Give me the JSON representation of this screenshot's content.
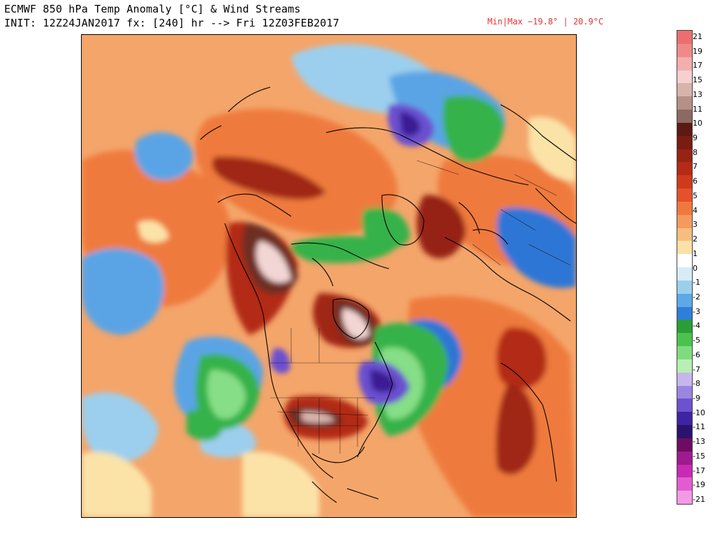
{
  "header": {
    "line1": "ECMWF 850 hPa Temp Anomaly [°C] & Wind Streams",
    "line2": "INIT: 12Z24JAN2017 fx: [240] hr --> Fri 12Z03FEB2017",
    "minmax": "Min|Max −19.8° | 20.9°C"
  },
  "colorbar": {
    "labels": [
      "21",
      "19",
      "17",
      "15",
      "13",
      "11",
      "10",
      "9",
      "8",
      "7",
      "6",
      "5",
      "4",
      "3",
      "2",
      "1",
      "0",
      "-1",
      "-2",
      "-3",
      "-4",
      "-5",
      "-6",
      "-7",
      "-8",
      "-9",
      "-10",
      "-11",
      "-13",
      "-15",
      "-17",
      "-19",
      "-21"
    ],
    "colors": [
      "#ec6f6f",
      "#f08a8a",
      "#f4aeae",
      "#f5d0cf",
      "#d8b3ac",
      "#b68f86",
      "#8c6a63",
      "#5c1a12",
      "#7a1c12",
      "#962414",
      "#b32b16",
      "#cf3a1c",
      "#e5512a",
      "#f0783f",
      "#f49a5c",
      "#f7bd80",
      "#fbe0a8",
      "#ffffff",
      "#d6ecf7",
      "#9ccfed",
      "#5da8e6",
      "#2f7ed9",
      "#2a9e34",
      "#4bc24e",
      "#7fdc7e",
      "#b7efb4",
      "#c7b6ec",
      "#9a86e0",
      "#6c52cf",
      "#3e24a3",
      "#2a136e",
      "#6e0c63",
      "#9e1a8f",
      "#c82ab5",
      "#e35ccf",
      "#f29be4"
    ]
  },
  "map": {
    "colors": {
      "warm_bg": "#f6b177",
      "orange": "#ef7a3c",
      "red_orange": "#dd4b25",
      "dark_red": "#a02614",
      "brown": "#6e2d22",
      "pink": "#f2d6d4",
      "light_blue": "#a9d6f2",
      "mid_blue": "#5aa4e6",
      "blue": "#2e76d6",
      "green": "#35b24a",
      "light_green": "#86de86",
      "purple": "#6a4fcf",
      "dark_purple": "#3a1e94",
      "pale_yellow": "#fbe3a8",
      "coast": "#000000"
    }
  }
}
